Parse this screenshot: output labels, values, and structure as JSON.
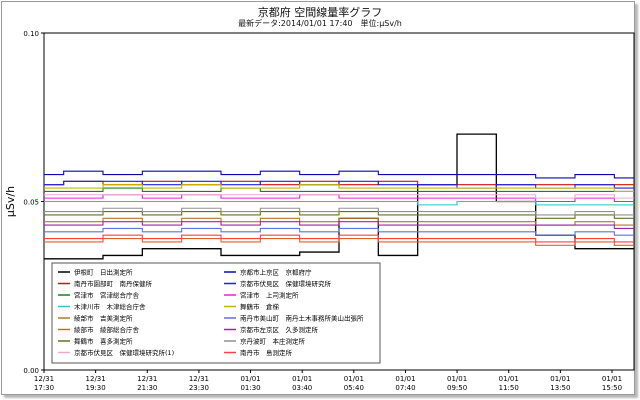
{
  "chart_data": {
    "type": "line",
    "title": "京都府 空間線量率グラフ",
    "subtitle": "最新データ:2014/01/01 17:40　単位:μSv/h",
    "ylabel": "μSv/h",
    "ylim": [
      0,
      0.1
    ],
    "yticks": [
      "0.00",
      "0.05",
      "0.10"
    ],
    "xticks": [
      [
        "12/31",
        "17:30"
      ],
      [
        "12/31",
        "19:30"
      ],
      [
        "12/31",
        "21:30"
      ],
      [
        "12/31",
        "23:30"
      ],
      [
        "01/01",
        "01:30"
      ],
      [
        "01/01",
        "03:40"
      ],
      [
        "01/01",
        "05:40"
      ],
      [
        "01/01",
        "07:40"
      ],
      [
        "01/01",
        "09:50"
      ],
      [
        "01/01",
        "11:50"
      ],
      [
        "01/01",
        "13:50"
      ],
      [
        "01/01",
        "15:50"
      ]
    ],
    "grid": false,
    "legend_position": "bottom-left",
    "series": [
      {
        "name": "伊根町　日出測定所",
        "color": "#000000",
        "values": [
          0.033,
          0.033,
          0.034,
          0.036,
          0.036,
          0.034,
          0.034,
          0.035,
          0.045,
          0.034,
          0.055,
          0.07,
          0.05,
          0.04,
          0.036,
          0.036
        ]
      },
      {
        "name": "京都市上京区　京都府庁",
        "color": "#0a0aa8",
        "values": [
          0.058,
          0.059,
          0.058,
          0.059,
          0.059,
          0.058,
          0.059,
          0.058,
          0.059,
          0.058,
          0.058,
          0.058,
          0.058,
          0.057,
          0.058,
          0.057
        ]
      },
      {
        "name": "南丹市園部町　南丹保健所",
        "color": "#d01010",
        "values": [
          0.055,
          0.056,
          0.055,
          0.056,
          0.055,
          0.056,
          0.055,
          0.056,
          0.055,
          0.056,
          0.055,
          0.055,
          0.055,
          0.055,
          0.055,
          0.055
        ]
      },
      {
        "name": "京都市伏見区　保健環境研究所",
        "color": "#2020e0",
        "values": [
          0.055,
          0.056,
          0.056,
          0.055,
          0.056,
          0.055,
          0.056,
          0.055,
          0.056,
          0.055,
          0.055,
          0.054,
          0.055,
          0.054,
          0.055,
          0.054
        ]
      },
      {
        "name": "宮津市　宮津総合庁舎",
        "color": "#0a8a0a",
        "values": [
          0.053,
          0.053,
          0.054,
          0.053,
          0.053,
          0.054,
          0.053,
          0.053,
          0.053,
          0.053,
          0.053,
          0.053,
          0.053,
          0.053,
          0.053,
          0.053
        ]
      },
      {
        "name": "宮津市　上司測定所",
        "color": "#e020e0",
        "values": [
          0.051,
          0.051,
          0.052,
          0.051,
          0.052,
          0.051,
          0.051,
          0.052,
          0.051,
          0.051,
          0.051,
          0.051,
          0.051,
          0.05,
          0.051,
          0.05
        ]
      },
      {
        "name": "木津川市　木津総合庁舎",
        "color": "#20c8c8",
        "values": [
          0.05,
          0.05,
          0.05,
          0.05,
          0.05,
          0.05,
          0.05,
          0.05,
          0.05,
          0.05,
          0.049,
          0.05,
          0.05,
          0.049,
          0.049,
          0.049
        ]
      },
      {
        "name": "舞鶴市　倉梯",
        "color": "#c8b400",
        "values": [
          0.054,
          0.054,
          0.055,
          0.054,
          0.055,
          0.054,
          0.054,
          0.055,
          0.054,
          0.054,
          0.054,
          0.054,
          0.054,
          0.054,
          0.054,
          0.053
        ]
      },
      {
        "name": "綾部市　吉美測定所",
        "color": "#b07828",
        "values": [
          0.044,
          0.044,
          0.045,
          0.044,
          0.045,
          0.044,
          0.045,
          0.044,
          0.045,
          0.044,
          0.044,
          0.044,
          0.044,
          0.043,
          0.044,
          0.043
        ]
      },
      {
        "name": "南丹市美山町　南丹土木事務所美山出張所",
        "color": "#6070e0",
        "values": [
          0.041,
          0.041,
          0.042,
          0.041,
          0.042,
          0.041,
          0.042,
          0.041,
          0.042,
          0.041,
          0.041,
          0.041,
          0.041,
          0.04,
          0.041,
          0.04
        ]
      },
      {
        "name": "綾部市　綾部総合庁舎",
        "color": "#e06030",
        "values": [
          0.038,
          0.038,
          0.039,
          0.038,
          0.039,
          0.038,
          0.039,
          0.038,
          0.039,
          0.038,
          0.038,
          0.038,
          0.038,
          0.037,
          0.038,
          0.037
        ]
      },
      {
        "name": "京都市左京区　久多測定所",
        "color": "#a020b0",
        "values": [
          0.043,
          0.043,
          0.044,
          0.043,
          0.044,
          0.043,
          0.044,
          0.043,
          0.044,
          0.043,
          0.043,
          0.043,
          0.043,
          0.043,
          0.043,
          0.042
        ]
      },
      {
        "name": "舞鶴市　喜多測定所",
        "color": "#607028",
        "values": [
          0.046,
          0.046,
          0.047,
          0.046,
          0.047,
          0.046,
          0.047,
          0.046,
          0.047,
          0.046,
          0.046,
          0.046,
          0.046,
          0.045,
          0.046,
          0.045
        ]
      },
      {
        "name": "京丹波町　本庄測定所",
        "color": "#909090",
        "values": [
          0.047,
          0.047,
          0.048,
          0.047,
          0.048,
          0.047,
          0.048,
          0.047,
          0.048,
          0.047,
          0.047,
          0.047,
          0.047,
          0.046,
          0.047,
          0.046
        ]
      },
      {
        "name": "京都市伏見区　保健環境研究所(1)",
        "color": "#f0a8d0",
        "values": [
          0.052,
          0.052,
          0.052,
          0.052,
          0.052,
          0.052,
          0.052,
          0.052,
          0.052,
          0.052,
          0.052,
          0.052,
          0.052,
          0.051,
          0.052,
          0.051
        ]
      },
      {
        "name": "南丹市　島測定所",
        "color": "#ff4040",
        "values": [
          0.039,
          0.039,
          0.04,
          0.039,
          0.04,
          0.039,
          0.04,
          0.039,
          0.04,
          0.039,
          0.039,
          0.039,
          0.039,
          0.038,
          0.039,
          0.038
        ]
      }
    ]
  }
}
